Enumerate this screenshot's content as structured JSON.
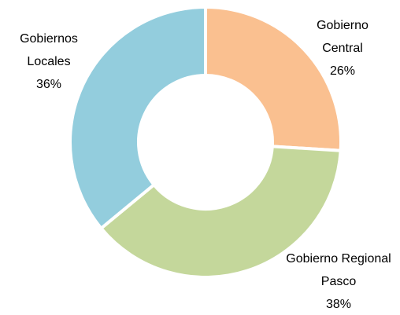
{
  "chart_data": {
    "type": "donut",
    "categories": [
      "Gobierno Central",
      "Gobierno Regional Pasco",
      "Gobiernos Locales"
    ],
    "values": [
      26,
      38,
      36
    ],
    "value_labels": [
      "26%",
      "38%",
      "36%"
    ],
    "colors": [
      "#fac090",
      "#c4d79b",
      "#93cddd"
    ]
  }
}
